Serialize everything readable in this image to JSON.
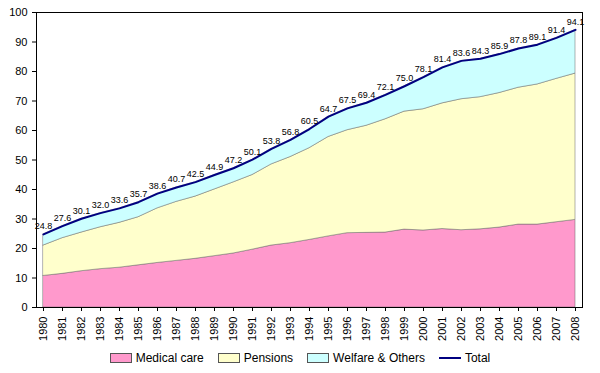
{
  "chart_data": {
    "type": "area",
    "stacked": true,
    "categories": [
      "1980",
      "1981",
      "1982",
      "1983",
      "1984",
      "1985",
      "1986",
      "1987",
      "1988",
      "1989",
      "1990",
      "1991",
      "1992",
      "1993",
      "1994",
      "1995",
      "1996",
      "1997",
      "1998",
      "1999",
      "2000",
      "2001",
      "2002",
      "2003",
      "2004",
      "2005",
      "2006",
      "2007",
      "2008"
    ],
    "ylim": [
      0,
      100
    ],
    "yticks": [
      0,
      10,
      20,
      30,
      40,
      50,
      60,
      70,
      80,
      90,
      100
    ],
    "legend": "bottom",
    "series": [
      {
        "name": "Medical care",
        "type": "area",
        "color": "#ff99cc",
        "values": [
          10.7,
          11.4,
          12.3,
          13.0,
          13.5,
          14.3,
          15.1,
          15.8,
          16.5,
          17.4,
          18.3,
          19.6,
          21.0,
          21.8,
          22.9,
          24.1,
          25.2,
          25.3,
          25.4,
          26.4,
          26.1,
          26.6,
          26.2,
          26.5,
          27.1,
          28.1,
          28.1,
          28.9,
          29.7
        ]
      },
      {
        "name": "Pensions",
        "type": "area",
        "color": "#ffffcc",
        "values": [
          10.3,
          12.1,
          13.1,
          14.2,
          15.2,
          16.3,
          18.5,
          20.0,
          21.1,
          22.6,
          24.1,
          25.3,
          27.5,
          29.2,
          31.1,
          33.7,
          34.9,
          36.3,
          38.4,
          40.0,
          41.1,
          42.6,
          44.4,
          44.8,
          45.6,
          46.4,
          47.5,
          48.6,
          49.6
        ]
      },
      {
        "name": "Welfare & Others",
        "type": "area",
        "color": "#ccffff",
        "values": [
          3.8,
          4.1,
          4.7,
          4.8,
          4.9,
          5.1,
          5.0,
          4.9,
          4.9,
          4.9,
          4.8,
          5.2,
          5.3,
          5.8,
          6.5,
          6.9,
          7.4,
          7.8,
          8.3,
          8.6,
          10.9,
          12.2,
          13.0,
          13.0,
          13.2,
          13.3,
          13.5,
          13.9,
          14.8
        ]
      },
      {
        "name": "Total",
        "type": "line",
        "color": "#000080",
        "data_labels": true,
        "values": [
          24.8,
          27.6,
          30.1,
          32.0,
          33.6,
          35.7,
          38.6,
          40.7,
          42.5,
          44.9,
          47.2,
          50.1,
          53.8,
          56.8,
          60.5,
          64.7,
          67.5,
          69.4,
          72.1,
          75.0,
          78.1,
          81.4,
          83.6,
          84.3,
          85.9,
          87.8,
          89.1,
          91.4,
          94.1
        ],
        "value_labels": [
          "24.8",
          "27.6",
          "30.1",
          "32.0",
          "33.6",
          "35.7",
          "38.6",
          "40.7",
          "42.5",
          "44.9",
          "47.2",
          "50.1",
          "53.8",
          "56.8",
          "60.5",
          "64.7",
          "67.5",
          "69.4",
          "72.1",
          "75.0",
          "78.1",
          "81.4",
          "83.6",
          "84.3",
          "85.9",
          "87.8",
          "89.1",
          "91.4",
          "94.1"
        ]
      }
    ]
  }
}
